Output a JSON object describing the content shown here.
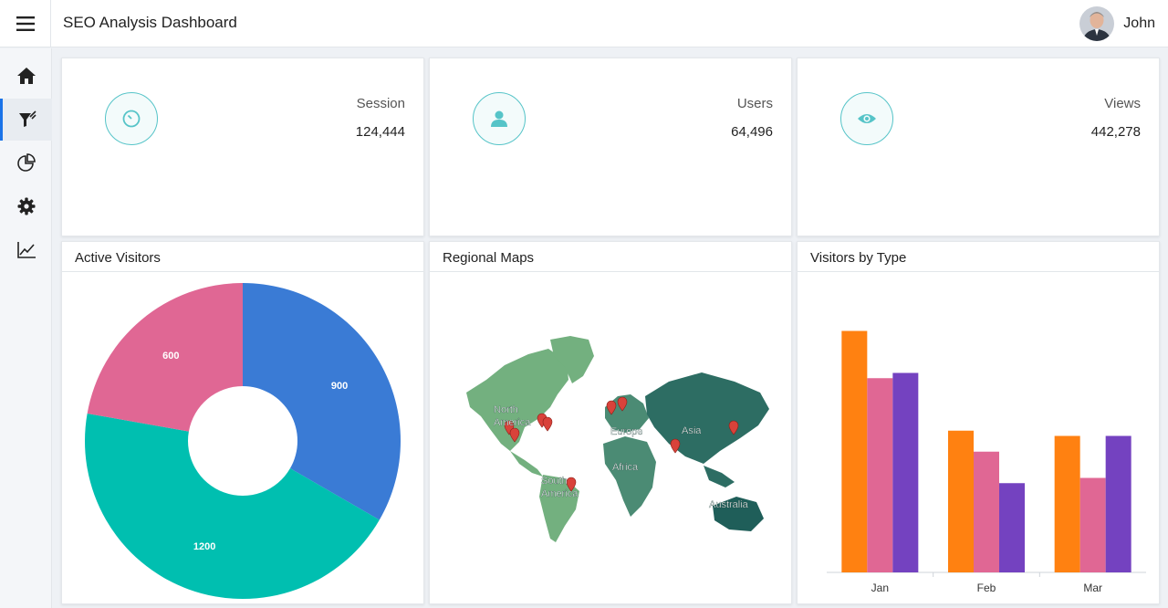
{
  "header": {
    "title": "SEO Analysis Dashboard",
    "user_name": "John"
  },
  "sidebar": {
    "items": [
      {
        "name": "home",
        "icon": "home-icon"
      },
      {
        "name": "filter",
        "icon": "filter-icon",
        "active": true
      },
      {
        "name": "pie",
        "icon": "pie-chart-icon"
      },
      {
        "name": "settings",
        "icon": "gear-icon"
      },
      {
        "name": "trend",
        "icon": "trend-icon"
      }
    ]
  },
  "stats": [
    {
      "label": "Session",
      "value": "124,444",
      "icon": "timer-icon"
    },
    {
      "label": "Users",
      "value": "64,496",
      "icon": "user-icon"
    },
    {
      "label": "Views",
      "value": "442,278",
      "icon": "eye-icon"
    }
  ],
  "panels": {
    "active_visitors": "Active Visitors",
    "regional_maps": "Regional Maps",
    "visitors_by_type": "Visitors by Type"
  },
  "map_labels": [
    "North America",
    "South America",
    "Europe",
    "Africa",
    "Asia",
    "Australia"
  ],
  "colors": {
    "accent": "#56c4c8",
    "active": "#1a73e8"
  },
  "chart_data": [
    {
      "type": "pie",
      "title": "Active Visitors",
      "slices": [
        {
          "value": 900,
          "label": "900",
          "color": "#3a7bd5"
        },
        {
          "value": 1200,
          "label": "1200",
          "color": "#00bfb0"
        },
        {
          "value": 600,
          "label": "600",
          "color": "#e06794"
        }
      ]
    },
    {
      "type": "bar",
      "title": "Visitors by Type",
      "categories": [
        "Jan",
        "Feb",
        "Mar"
      ],
      "ylim": [
        0,
        260
      ],
      "series": [
        {
          "values": [
            230,
            135,
            130
          ],
          "color": "#ff8111"
        },
        {
          "values": [
            185,
            115,
            90
          ],
          "color": "#e06794"
        },
        {
          "values": [
            190,
            85,
            130
          ],
          "color": "#7442c0"
        }
      ]
    }
  ]
}
